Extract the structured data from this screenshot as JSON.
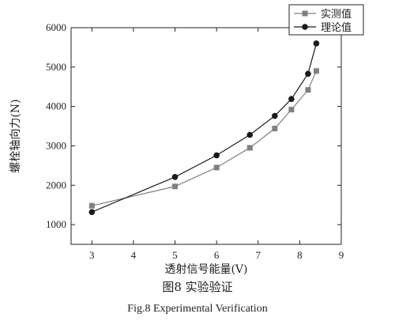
{
  "caption": {
    "chinese": "图8  实验验证",
    "english": "Fig.8  Experimental  Verification"
  },
  "chart_data": {
    "type": "line",
    "title": "",
    "xlabel": "透射信号能量(V)",
    "ylabel": "螺栓轴向力(N)",
    "xlim": [
      2.5,
      9
    ],
    "ylim": [
      500,
      6000
    ],
    "xticks": [
      3,
      4,
      5,
      6,
      7,
      8,
      9
    ],
    "yticks": [
      1000,
      2000,
      3000,
      4000,
      5000,
      6000
    ],
    "grid": false,
    "legend_position": "top-right",
    "series": [
      {
        "name": "实测值",
        "marker": "square",
        "color": "#808080",
        "x": [
          3.0,
          5.0,
          6.0,
          6.8,
          7.4,
          7.8,
          8.2,
          8.4
        ],
        "y": [
          1480,
          1970,
          2450,
          2950,
          3440,
          3920,
          4420,
          4900
        ]
      },
      {
        "name": "理论值",
        "marker": "circle",
        "color": "#1a1a1a",
        "x": [
          3.0,
          5.0,
          6.0,
          6.8,
          7.4,
          7.8,
          8.2,
          8.4
        ],
        "y": [
          1320,
          2210,
          2760,
          3280,
          3760,
          4190,
          4830,
          5600
        ]
      }
    ]
  }
}
